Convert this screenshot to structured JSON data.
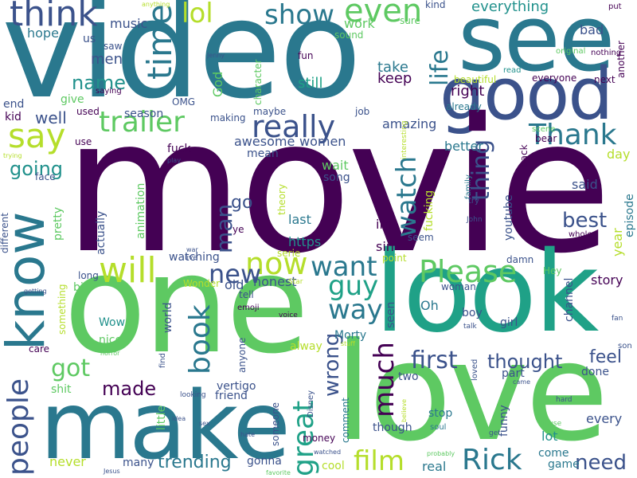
{
  "palette": {
    "purple": "#440154",
    "indigo": "#3b528b",
    "teal": "#21918c",
    "sea": "#2a788e",
    "green": "#5ec962",
    "lime": "#b5de2b",
    "lightgreen": "#7ad151",
    "aqua": "#1fa187"
  },
  "words": [
    {
      "id": "video",
      "text": "video"
    },
    {
      "id": "see",
      "text": "see"
    },
    {
      "id": "good",
      "text": "good"
    },
    {
      "id": "movie",
      "text": "movie"
    },
    {
      "id": "one",
      "text": "one"
    },
    {
      "id": "look",
      "text": "look"
    },
    {
      "id": "love",
      "text": "love"
    },
    {
      "id": "make",
      "text": "make"
    },
    {
      "id": "know",
      "text": "know"
    },
    {
      "id": "think",
      "text": "think"
    },
    {
      "id": "time",
      "text": "time"
    },
    {
      "id": "lol",
      "text": "lol"
    },
    {
      "id": "show",
      "text": "show"
    },
    {
      "id": "even",
      "text": "even"
    },
    {
      "id": "life",
      "text": "life"
    },
    {
      "id": "everything",
      "text": "everything"
    },
    {
      "id": "trailer",
      "text": "trailer"
    },
    {
      "id": "really",
      "text": "really"
    },
    {
      "id": "say",
      "text": "say"
    },
    {
      "id": "Thank",
      "text": "Thank"
    },
    {
      "id": "name",
      "text": "name"
    },
    {
      "id": "people",
      "text": "people"
    },
    {
      "id": "will",
      "text": "will"
    },
    {
      "id": "now",
      "text": "now"
    },
    {
      "id": "want",
      "text": "want"
    },
    {
      "id": "Please",
      "text": "Please"
    },
    {
      "id": "guy",
      "text": "guy"
    },
    {
      "id": "new",
      "text": "new"
    },
    {
      "id": "man",
      "text": "man"
    },
    {
      "id": "going",
      "text": "going"
    },
    {
      "id": "watch",
      "text": "watch"
    },
    {
      "id": "thing",
      "text": "thing"
    },
    {
      "id": "best",
      "text": "best"
    },
    {
      "id": "way",
      "text": "way"
    },
    {
      "id": "book",
      "text": "book"
    },
    {
      "id": "much",
      "text": "much"
    },
    {
      "id": "first",
      "text": "first"
    },
    {
      "id": "thought",
      "text": "thought"
    },
    {
      "id": "got",
      "text": "got"
    },
    {
      "id": "made",
      "text": "made"
    },
    {
      "id": "great",
      "text": "great"
    },
    {
      "id": "wrong",
      "text": "wrong"
    },
    {
      "id": "film",
      "text": "film"
    },
    {
      "id": "Rick",
      "text": "Rick"
    },
    {
      "id": "need",
      "text": "need"
    },
    {
      "id": "trending",
      "text": "trending"
    },
    {
      "id": "feel",
      "text": "feel"
    },
    {
      "id": "well",
      "text": "well"
    },
    {
      "id": "hope",
      "text": "hope"
    },
    {
      "id": "music",
      "text": "music"
    },
    {
      "id": "men",
      "text": "men"
    },
    {
      "id": "still",
      "text": "still"
    },
    {
      "id": "keep",
      "text": "keep"
    },
    {
      "id": "take",
      "text": "take"
    },
    {
      "id": "work",
      "text": "work"
    },
    {
      "id": "right",
      "text": "right"
    },
    {
      "id": "amazing",
      "text": "amazing"
    },
    {
      "id": "awesome",
      "text": "awesome"
    },
    {
      "id": "women",
      "text": "women"
    },
    {
      "id": "better",
      "text": "better"
    },
    {
      "id": "go",
      "text": "go"
    },
    {
      "id": "wait",
      "text": "wait"
    },
    {
      "id": "last",
      "text": "last"
    },
    {
      "id": "im",
      "text": "im"
    },
    {
      "id": "https",
      "text": "https"
    },
    {
      "id": "sin",
      "text": "sin"
    },
    {
      "id": "honest",
      "text": "honest"
    },
    {
      "id": "Oh",
      "text": "Oh"
    },
    {
      "id": "seen",
      "text": "seen"
    },
    {
      "id": "vertigo",
      "text": "vertigo"
    },
    {
      "id": "Morty",
      "text": "Morty"
    },
    {
      "id": "story",
      "text": "story"
    },
    {
      "id": "year",
      "text": "year"
    },
    {
      "id": "youtube",
      "text": "youtube"
    },
    {
      "id": "episode",
      "text": "episode"
    },
    {
      "id": "said",
      "text": "said"
    },
    {
      "id": "day",
      "text": "day"
    },
    {
      "id": "channel",
      "text": "channel"
    },
    {
      "id": "lot",
      "text": "lot"
    },
    {
      "id": "every",
      "text": "every"
    },
    {
      "id": "done",
      "text": "done"
    },
    {
      "id": "part",
      "text": "part"
    },
    {
      "id": "funny",
      "text": "funny"
    },
    {
      "id": "gonna",
      "text": "gonna"
    },
    {
      "id": "never",
      "text": "never"
    },
    {
      "id": "many",
      "text": "many"
    },
    {
      "id": "cool",
      "text": "cool"
    },
    {
      "id": "real",
      "text": "real"
    },
    {
      "id": "come",
      "text": "come"
    },
    {
      "id": "game",
      "text": "game"
    },
    {
      "id": "Wow",
      "text": "Wow"
    },
    {
      "id": "nice",
      "text": "nice"
    },
    {
      "id": "shit",
      "text": "shit"
    },
    {
      "id": "world",
      "text": "world"
    },
    {
      "id": "old",
      "text": "old"
    },
    {
      "id": "always",
      "text": "alway"
    },
    {
      "id": "boy",
      "text": "boy"
    },
    {
      "id": "girl",
      "text": "girl"
    },
    {
      "id": "woman",
      "text": "woman"
    },
    {
      "id": "two",
      "text": "two"
    },
    {
      "id": "stop",
      "text": "stop"
    },
    {
      "id": "though",
      "text": "though"
    },
    {
      "id": "friend",
      "text": "friend"
    },
    {
      "id": "fucking",
      "text": "fucking"
    },
    {
      "id": "song",
      "text": "song"
    },
    {
      "id": "theory",
      "text": "theory"
    },
    {
      "id": "mean",
      "text": "mean"
    },
    {
      "id": "fuck",
      "text": "fuck"
    },
    {
      "id": "actually",
      "text": "actually"
    },
    {
      "id": "pretty",
      "text": "pretty"
    },
    {
      "id": "animation",
      "text": "animation"
    },
    {
      "id": "watching",
      "text": "watching"
    },
    {
      "id": "God",
      "text": "God"
    },
    {
      "id": "character",
      "text": "character"
    },
    {
      "id": "maybe",
      "text": "maybe"
    },
    {
      "id": "making",
      "text": "making"
    },
    {
      "id": "season",
      "text": "season"
    },
    {
      "id": "kid",
      "text": "kid"
    },
    {
      "id": "end",
      "text": "end"
    },
    {
      "id": "give",
      "text": "give"
    },
    {
      "id": "OMG",
      "text": "OMG"
    },
    {
      "id": "used",
      "text": "used"
    },
    {
      "id": "saying",
      "text": "saying"
    },
    {
      "id": "us",
      "text": "us"
    },
    {
      "id": "saw",
      "text": "saw"
    },
    {
      "id": "fun",
      "text": "fun"
    },
    {
      "id": "sound",
      "text": "sound"
    },
    {
      "id": "sure",
      "text": "sure"
    },
    {
      "id": "kind",
      "text": "kind"
    },
    {
      "id": "bad",
      "text": "bad"
    },
    {
      "id": "put",
      "text": "put"
    },
    {
      "id": "another",
      "text": "another"
    },
    {
      "id": "nothing",
      "text": "nothing"
    },
    {
      "id": "original",
      "text": "original"
    },
    {
      "id": "read",
      "text": "read"
    },
    {
      "id": "everyone",
      "text": "everyone"
    },
    {
      "id": "next",
      "text": "next"
    },
    {
      "id": "beautiful",
      "text": "beautiful"
    },
    {
      "id": "already",
      "text": "already"
    },
    {
      "id": "scene",
      "text": "scene"
    },
    {
      "id": "bear",
      "text": "bear"
    },
    {
      "id": "interesting",
      "text": "interesting"
    },
    {
      "id": "job",
      "text": "job"
    },
    {
      "id": "back",
      "text": "back"
    },
    {
      "id": "face",
      "text": "face"
    },
    {
      "id": "use",
      "text": "use"
    },
    {
      "id": "play",
      "text": "play"
    },
    {
      "id": "trying",
      "text": "trying"
    },
    {
      "id": "ye",
      "text": "ye"
    },
    {
      "id": "serie",
      "text": "serie"
    },
    {
      "id": "seem",
      "text": "seem"
    },
    {
      "id": "family",
      "text": "family"
    },
    {
      "id": "try",
      "text": "try"
    },
    {
      "id": "John",
      "text": "John"
    },
    {
      "id": "whole",
      "text": "whole"
    },
    {
      "id": "point",
      "text": "point"
    },
    {
      "id": "damn",
      "text": "damn"
    },
    {
      "id": "Hey",
      "text": "Hey"
    },
    {
      "id": "Star",
      "text": "Star"
    },
    {
      "id": "different",
      "text": "different"
    },
    {
      "id": "war",
      "text": "war"
    },
    {
      "id": "live",
      "text": "live"
    },
    {
      "id": "long",
      "text": "long"
    },
    {
      "id": "big",
      "text": "big"
    },
    {
      "id": "something",
      "text": "something"
    },
    {
      "id": "getting",
      "text": "getting"
    },
    {
      "id": "Wonder",
      "text": "Wonder"
    },
    {
      "id": "tell",
      "text": "tell"
    },
    {
      "id": "emoji",
      "text": "emoji"
    },
    {
      "id": "voice",
      "text": "voice"
    },
    {
      "id": "care",
      "text": "care"
    },
    {
      "id": "horror",
      "text": "horror"
    },
    {
      "id": "find",
      "text": "find"
    },
    {
      "id": "anyone",
      "text": "anyone"
    },
    {
      "id": "stuff",
      "text": "stuff"
    },
    {
      "id": "talk",
      "text": "talk"
    },
    {
      "id": "loved",
      "text": "loved"
    },
    {
      "id": "came",
      "text": "came"
    },
    {
      "id": "hard",
      "text": "hard"
    },
    {
      "id": "son",
      "text": "son"
    },
    {
      "id": "fan",
      "text": "fan"
    },
    {
      "id": "looking",
      "text": "looking"
    },
    {
      "id": "Disney",
      "text": "Disney"
    },
    {
      "id": "little",
      "text": "little"
    },
    {
      "id": "idea",
      "text": "idea"
    },
    {
      "id": "sex",
      "text": "sex"
    },
    {
      "id": "hate",
      "text": "hate"
    },
    {
      "id": "someone",
      "text": "someone"
    },
    {
      "id": "money",
      "text": "money"
    },
    {
      "id": "comment",
      "text": "comment"
    },
    {
      "id": "believe",
      "text": "believe"
    },
    {
      "id": "soul",
      "text": "soul"
    },
    {
      "id": "get",
      "text": "get"
    },
    {
      "id": "house",
      "text": "house"
    },
    {
      "id": "watched",
      "text": "watched"
    },
    {
      "id": "probably",
      "text": "probably"
    },
    {
      "id": "Jesus",
      "text": "Jesus"
    },
    {
      "id": "favorite",
      "text": "favorite"
    },
    {
      "id": "anything",
      "text": "anything"
    },
    {
      "id": "Jenny",
      "text": "Jenny"
    }
  ]
}
